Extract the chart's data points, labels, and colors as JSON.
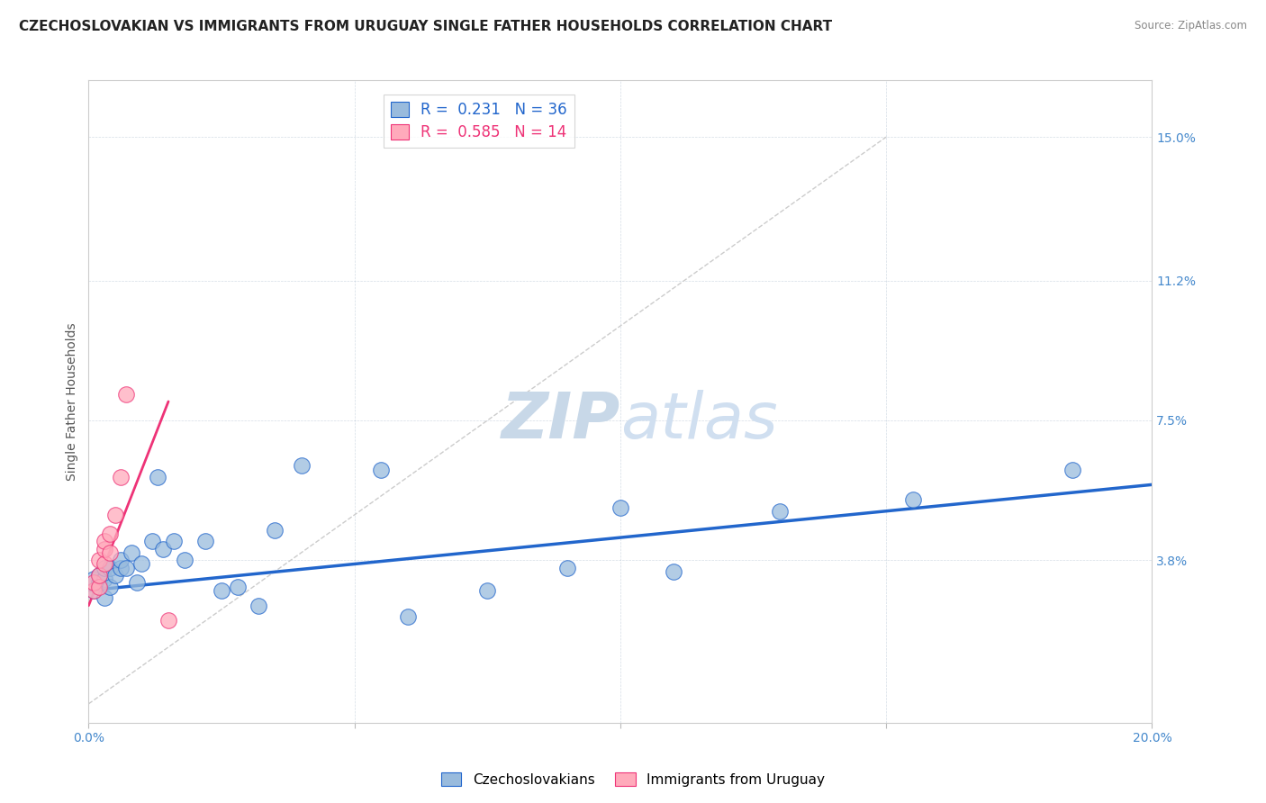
{
  "title": "CZECHOSLOVAKIAN VS IMMIGRANTS FROM URUGUAY SINGLE FATHER HOUSEHOLDS CORRELATION CHART",
  "source": "Source: ZipAtlas.com",
  "ylabel": "Single Father Households",
  "xlabel": "",
  "xlim": [
    0.0,
    0.2
  ],
  "ylim": [
    -0.005,
    0.165
  ],
  "yticks": [
    0.038,
    0.075,
    0.112,
    0.15
  ],
  "ytick_labels": [
    "3.8%",
    "7.5%",
    "11.2%",
    "15.0%"
  ],
  "xticks": [
    0.0,
    0.05,
    0.1,
    0.15,
    0.2
  ],
  "xtick_labels": [
    "0.0%",
    "",
    "",
    "",
    "20.0%"
  ],
  "watermark_zip": "ZIP",
  "watermark_atlas": "atlas",
  "legend_blue_r": "0.231",
  "legend_blue_n": "36",
  "legend_pink_r": "0.585",
  "legend_pink_n": "14",
  "blue_scatter_x": [
    0.001,
    0.001,
    0.002,
    0.002,
    0.003,
    0.003,
    0.003,
    0.004,
    0.004,
    0.005,
    0.006,
    0.006,
    0.007,
    0.008,
    0.009,
    0.01,
    0.012,
    0.013,
    0.014,
    0.016,
    0.018,
    0.022,
    0.025,
    0.028,
    0.032,
    0.035,
    0.04,
    0.055,
    0.06,
    0.075,
    0.09,
    0.1,
    0.11,
    0.13,
    0.155,
    0.185
  ],
  "blue_scatter_y": [
    0.03,
    0.033,
    0.032,
    0.034,
    0.028,
    0.033,
    0.036,
    0.031,
    0.036,
    0.034,
    0.036,
    0.038,
    0.036,
    0.04,
    0.032,
    0.037,
    0.043,
    0.06,
    0.041,
    0.043,
    0.038,
    0.043,
    0.03,
    0.031,
    0.026,
    0.046,
    0.063,
    0.062,
    0.023,
    0.03,
    0.036,
    0.052,
    0.035,
    0.051,
    0.054,
    0.062
  ],
  "pink_scatter_x": [
    0.001,
    0.001,
    0.002,
    0.002,
    0.002,
    0.003,
    0.003,
    0.003,
    0.004,
    0.004,
    0.005,
    0.006,
    0.007,
    0.015
  ],
  "pink_scatter_y": [
    0.03,
    0.032,
    0.031,
    0.034,
    0.038,
    0.037,
    0.041,
    0.043,
    0.04,
    0.045,
    0.05,
    0.06,
    0.082,
    0.022
  ],
  "blue_line_x": [
    0.0,
    0.2
  ],
  "blue_line_y": [
    0.03,
    0.058
  ],
  "pink_line_x": [
    0.0,
    0.015
  ],
  "pink_line_y": [
    0.026,
    0.08
  ],
  "dashed_line_x": [
    0.0,
    0.15
  ],
  "dashed_line_y": [
    0.0,
    0.15
  ],
  "blue_color": "#99BBDD",
  "pink_color": "#FFAABB",
  "blue_line_color": "#2266CC",
  "pink_line_color": "#EE3377",
  "dashed_color": "#CCCCCC",
  "title_fontsize": 11,
  "axis_label_fontsize": 10,
  "tick_fontsize": 10,
  "background_color": "#FFFFFF",
  "right_tick_color": "#4488CC",
  "legend_label_blue": "Czechoslovakians",
  "legend_label_pink": "Immigrants from Uruguay"
}
